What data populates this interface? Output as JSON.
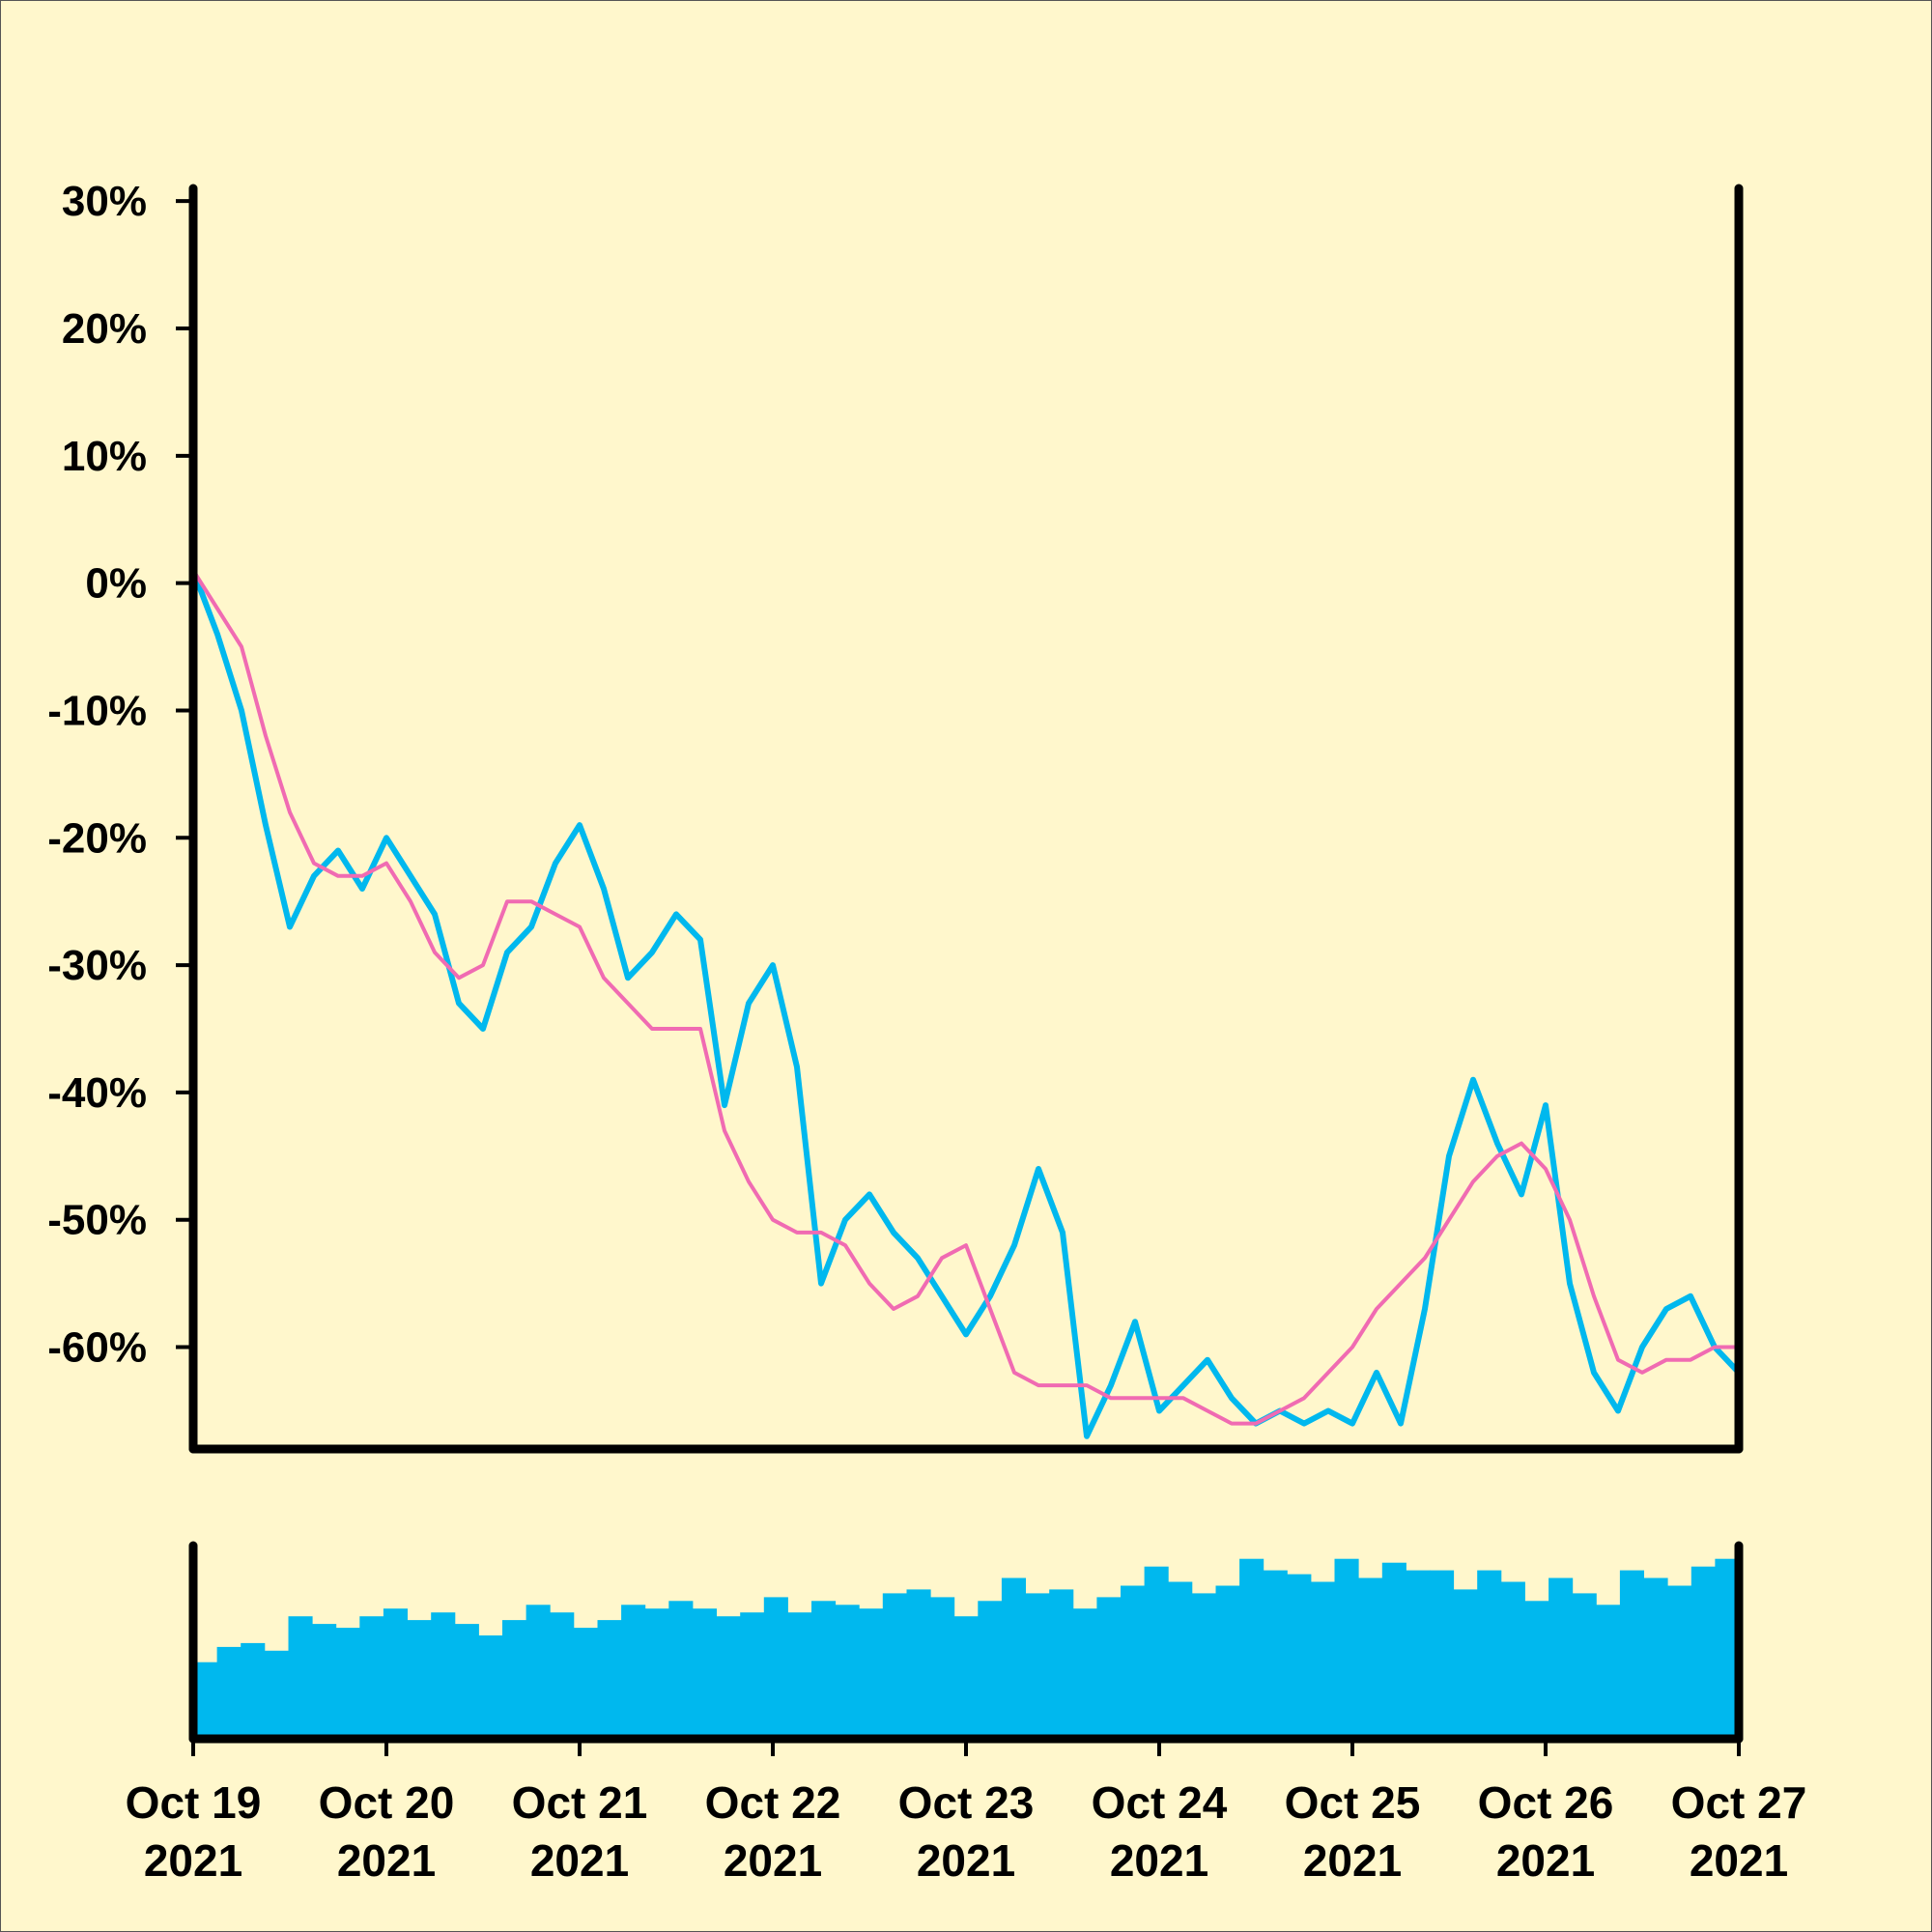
{
  "chart_data": {
    "type": "line",
    "title": "",
    "xlabel": "",
    "ylabel": "",
    "colors": {
      "background": "#FFF7CC",
      "price_line": "#00B8EE",
      "moving_average": "#F06BB2",
      "volume_bars": "#00B8EE",
      "axis": "#000000"
    },
    "price_panel": {
      "ylim": [
        -68,
        31
      ],
      "y_ticks": [
        {
          "value": 30,
          "label": "30%"
        },
        {
          "value": 20,
          "label": "20%"
        },
        {
          "value": 10,
          "label": "10%"
        },
        {
          "value": 0,
          "label": "0%"
        },
        {
          "value": -10,
          "label": "-10%"
        },
        {
          "value": -20,
          "label": "-20%"
        },
        {
          "value": -30,
          "label": "-30%"
        },
        {
          "value": -40,
          "label": "-40%"
        },
        {
          "value": -50,
          "label": "-50%"
        },
        {
          "value": -60,
          "label": "-60%"
        }
      ],
      "series": [
        {
          "values_x": [
            "2021-10-19 00:00",
            "2021-10-19 03:00",
            "2021-10-19 06:00",
            "2021-10-19 09:00",
            "2021-10-19 12:00",
            "2021-10-19 15:00",
            "2021-10-19 18:00",
            "2021-10-19 21:00",
            "2021-10-20 00:00",
            "2021-10-20 03:00",
            "2021-10-20 06:00",
            "2021-10-20 09:00",
            "2021-10-20 12:00",
            "2021-10-20 15:00",
            "2021-10-20 18:00",
            "2021-10-20 21:00",
            "2021-10-21 00:00",
            "2021-10-21 03:00",
            "2021-10-21 06:00",
            "2021-10-21 09:00",
            "2021-10-21 12:00",
            "2021-10-21 15:00",
            "2021-10-21 18:00",
            "2021-10-21 21:00",
            "2021-10-22 00:00",
            "2021-10-22 03:00",
            "2021-10-22 06:00",
            "2021-10-22 09:00",
            "2021-10-22 12:00",
            "2021-10-22 15:00",
            "2021-10-22 18:00",
            "2021-10-22 21:00",
            "2021-10-23 00:00",
            "2021-10-23 03:00",
            "2021-10-23 06:00",
            "2021-10-23 09:00",
            "2021-10-23 12:00",
            "2021-10-23 15:00",
            "2021-10-23 18:00",
            "2021-10-23 21:00",
            "2021-10-24 00:00",
            "2021-10-24 03:00",
            "2021-10-24 06:00",
            "2021-10-24 09:00",
            "2021-10-24 12:00",
            "2021-10-24 15:00",
            "2021-10-24 18:00",
            "2021-10-24 21:00",
            "2021-10-25 00:00",
            "2021-10-25 03:00",
            "2021-10-25 06:00",
            "2021-10-25 09:00",
            "2021-10-25 12:00",
            "2021-10-25 15:00",
            "2021-10-25 18:00",
            "2021-10-25 21:00",
            "2021-10-26 00:00",
            "2021-10-26 03:00",
            "2021-10-26 06:00",
            "2021-10-26 09:00",
            "2021-10-26 12:00",
            "2021-10-26 15:00",
            "2021-10-26 18:00",
            "2021-10-26 21:00",
            "2021-10-27 00:00"
          ],
          "values": [
            1,
            -4,
            -10,
            -19,
            -27,
            -23,
            -21,
            -24,
            -20,
            -23,
            -26,
            -33,
            -35,
            -29,
            -27,
            -22,
            -19,
            -24,
            -31,
            -29,
            -26,
            -28,
            -41,
            -33,
            -30,
            -38,
            -55,
            -50,
            -48,
            -51,
            -53,
            -56,
            -59,
            -56,
            -52,
            -46,
            -51,
            -67,
            -63,
            -58,
            -65,
            -63,
            -61,
            -64,
            -66,
            -65,
            -66,
            -65,
            -66,
            -62,
            -66,
            -57,
            -45,
            -39,
            -44,
            -48,
            -41,
            -55,
            -62,
            -65,
            -60,
            -57,
            -56,
            -60,
            -62
          ]
        },
        {
          "values_x": [
            "2021-10-19 00:00",
            "2021-10-19 03:00",
            "2021-10-19 06:00",
            "2021-10-19 09:00",
            "2021-10-19 12:00",
            "2021-10-19 15:00",
            "2021-10-19 18:00",
            "2021-10-19 21:00",
            "2021-10-20 00:00",
            "2021-10-20 03:00",
            "2021-10-20 06:00",
            "2021-10-20 09:00",
            "2021-10-20 12:00",
            "2021-10-20 15:00",
            "2021-10-20 18:00",
            "2021-10-20 21:00",
            "2021-10-21 00:00",
            "2021-10-21 03:00",
            "2021-10-21 06:00",
            "2021-10-21 09:00",
            "2021-10-21 12:00",
            "2021-10-21 15:00",
            "2021-10-21 18:00",
            "2021-10-21 21:00",
            "2021-10-22 00:00",
            "2021-10-22 03:00",
            "2021-10-22 06:00",
            "2021-10-22 09:00",
            "2021-10-22 12:00",
            "2021-10-22 15:00",
            "2021-10-22 18:00",
            "2021-10-22 21:00",
            "2021-10-23 00:00",
            "2021-10-23 03:00",
            "2021-10-23 06:00",
            "2021-10-23 09:00",
            "2021-10-23 12:00",
            "2021-10-23 15:00",
            "2021-10-23 18:00",
            "2021-10-23 21:00",
            "2021-10-24 00:00",
            "2021-10-24 03:00",
            "2021-10-24 06:00",
            "2021-10-24 09:00",
            "2021-10-24 12:00",
            "2021-10-24 15:00",
            "2021-10-24 18:00",
            "2021-10-24 21:00",
            "2021-10-25 00:00",
            "2021-10-25 03:00",
            "2021-10-25 06:00",
            "2021-10-25 09:00",
            "2021-10-25 12:00",
            "2021-10-25 15:00",
            "2021-10-25 18:00",
            "2021-10-25 21:00",
            "2021-10-26 00:00",
            "2021-10-26 03:00",
            "2021-10-26 06:00",
            "2021-10-26 09:00",
            "2021-10-26 12:00",
            "2021-10-26 15:00",
            "2021-10-26 18:00",
            "2021-10-26 21:00",
            "2021-10-27 00:00"
          ],
          "values": [
            1,
            -2,
            -5,
            -12,
            -18,
            -22,
            -23,
            -23,
            -22,
            -25,
            -29,
            -31,
            -30,
            -25,
            -25,
            -26,
            -27,
            -31,
            -33,
            -35,
            -35,
            -35,
            -43,
            -47,
            -50,
            -51,
            -51,
            -52,
            -55,
            -57,
            -56,
            -53,
            -52,
            -57,
            -62,
            -63,
            -63,
            -63,
            -64,
            -64,
            -64,
            -64,
            -65,
            -66,
            -66,
            -65,
            -64,
            -62,
            -60,
            -57,
            -55,
            -53,
            -50,
            -47,
            -45,
            -44,
            -46,
            -50,
            -56,
            -61,
            -62,
            -61,
            -61,
            -60,
            -60
          ]
        }
      ]
    },
    "volume_panel": {
      "values": [
        20,
        24,
        25,
        23,
        32,
        30,
        29,
        32,
        34,
        31,
        33,
        30,
        27,
        31,
        35,
        33,
        29,
        31,
        35,
        34,
        36,
        34,
        32,
        33,
        37,
        33,
        36,
        35,
        34,
        38,
        39,
        37,
        32,
        36,
        42,
        38,
        39,
        34,
        37,
        40,
        45,
        41,
        38,
        40,
        47,
        44,
        43,
        41,
        47,
        42,
        46,
        44,
        44,
        39,
        44,
        41,
        36,
        42,
        38,
        35,
        44,
        42,
        40,
        45,
        47
      ]
    },
    "x_ticks": [
      {
        "value": "2021-10-19",
        "label": [
          "Oct 19",
          "2021"
        ]
      },
      {
        "value": "2021-10-20",
        "label": [
          "Oct 20",
          "2021"
        ]
      },
      {
        "value": "2021-10-21",
        "label": [
          "Oct 21",
          "2021"
        ]
      },
      {
        "value": "2021-10-22",
        "label": [
          "Oct 22",
          "2021"
        ]
      },
      {
        "value": "2021-10-23",
        "label": [
          "Oct 23",
          "2021"
        ]
      },
      {
        "value": "2021-10-24",
        "label": [
          "Oct 24",
          "2021"
        ]
      },
      {
        "value": "2021-10-25",
        "label": [
          "Oct 25",
          "2021"
        ]
      },
      {
        "value": "2021-10-26",
        "label": [
          "Oct 26",
          "2021"
        ]
      },
      {
        "value": "2021-10-27",
        "label": [
          "Oct 27",
          "2021"
        ]
      }
    ],
    "xlim": [
      "2021-10-19",
      "2021-10-27"
    ],
    "grid": false,
    "legend": "none"
  }
}
